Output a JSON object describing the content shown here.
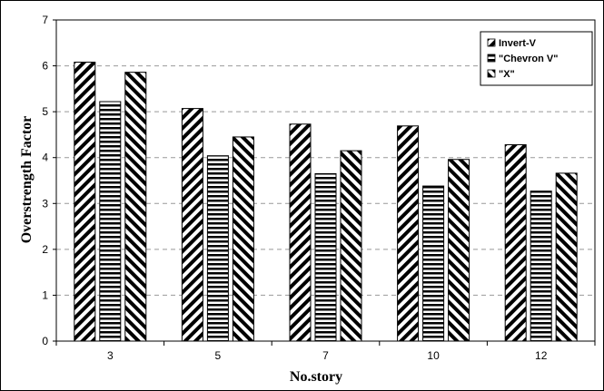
{
  "chart_data": {
    "type": "bar",
    "title": "",
    "xlabel": "No.story",
    "ylabel": "Overstrength Factor",
    "categories": [
      "3",
      "5",
      "7",
      "10",
      "12"
    ],
    "ylim": [
      0,
      7
    ],
    "yticks": [
      0,
      1,
      2,
      3,
      4,
      5,
      6,
      7
    ],
    "grid": "horizontal-dashed",
    "legend_position": "top-right",
    "series": [
      {
        "name": "Invert-V",
        "pattern": "diagonal-forward",
        "values": [
          6.08,
          5.07,
          4.73,
          4.69,
          4.28
        ]
      },
      {
        "name": "\"Chevron V\"",
        "pattern": "horizontal",
        "values": [
          5.22,
          4.04,
          3.65,
          3.38,
          3.27
        ]
      },
      {
        "name": "\"X\"",
        "pattern": "diagonal-backward",
        "values": [
          5.86,
          4.45,
          4.15,
          3.96,
          3.66
        ]
      }
    ],
    "colors": {
      "bar_fill": "#ffffff",
      "bar_stroke": "#000000",
      "grid": "#999999"
    }
  }
}
